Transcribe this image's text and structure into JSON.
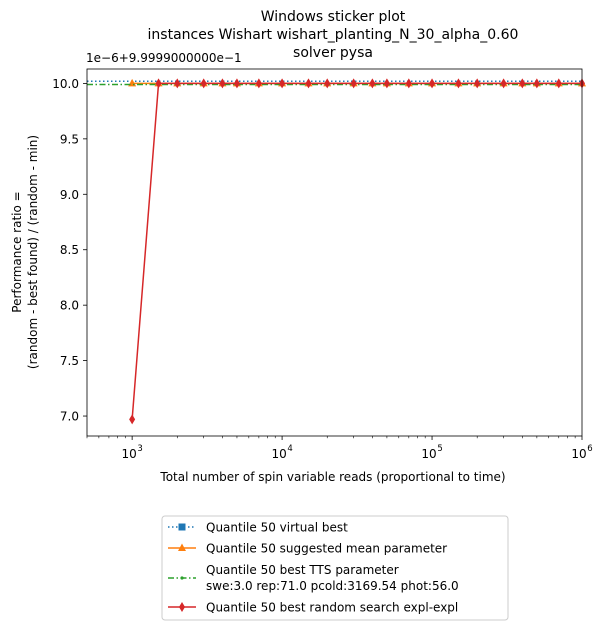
{
  "chart_data": {
    "type": "line",
    "title_lines": [
      "Windows sticker plot",
      "instances Wishart wishart_planting_N_30_alpha_0.60",
      "solver pysa"
    ],
    "xlabel": "Total number of spin variable reads (proportional to time)",
    "ylabel_lines": [
      "Performance ratio =",
      "(random - best found) / (random - min)"
    ],
    "y_offset_label": "1e−6+9.9999000000e−1",
    "x_scale": "log",
    "xlim": [
      500,
      1000000
    ],
    "x_ticks": [
      {
        "value": 1000,
        "base": "10",
        "exp": "3"
      },
      {
        "value": 10000,
        "base": "10",
        "exp": "4"
      },
      {
        "value": 100000,
        "base": "10",
        "exp": "5"
      },
      {
        "value": 1000000,
        "base": "10",
        "exp": "6"
      }
    ],
    "ylim": [
      6.82,
      10.13
    ],
    "y_ticks": [
      {
        "value": 7.0,
        "label": "7.0"
      },
      {
        "value": 7.5,
        "label": "7.5"
      },
      {
        "value": 8.0,
        "label": "8.0"
      },
      {
        "value": 8.5,
        "label": "8.5"
      },
      {
        "value": 9.0,
        "label": "9.0"
      },
      {
        "value": 9.5,
        "label": "9.5"
      },
      {
        "value": 10.0,
        "label": "10.0"
      }
    ],
    "grid": false,
    "legend_placement": "below the plot",
    "series": [
      {
        "name": "Quantile 50 virtual best",
        "color": "#1f77b4",
        "marker": "square",
        "line_style": "dotted",
        "x": [
          500,
          1000000
        ],
        "y": [
          10.02,
          10.02
        ]
      },
      {
        "name": "Quantile 50 suggested mean parameter",
        "color": "#ff7f0e",
        "marker": "triangle",
        "line_style": "solid",
        "x": [
          1000,
          1500,
          2000,
          3000,
          4000,
          5000,
          7000,
          10000,
          15000,
          20000,
          30000,
          40000,
          50000,
          70000,
          100000,
          150000,
          200000,
          300000,
          400000,
          500000,
          700000,
          1000000
        ],
        "y": [
          10.0,
          10.0,
          10.0,
          10.0,
          10.0,
          10.0,
          10.0,
          10.0,
          10.0,
          10.0,
          10.0,
          10.0,
          10.0,
          10.0,
          10.0,
          10.0,
          10.0,
          10.0,
          10.0,
          10.0,
          10.0,
          10.0
        ]
      },
      {
        "name_lines": [
          "Quantile 50 best TTS parameter",
          "swe:3.0 rep:71.0 pcold:3169.54 phot:56.0"
        ],
        "color": "#2ca02c",
        "marker": "point",
        "line_style": "dashdot",
        "x": [
          500,
          1000000
        ],
        "y": [
          9.99,
          9.99
        ]
      },
      {
        "name": "Quantile 50  best random search expl-expl",
        "color": "#d62728",
        "marker": "diamond",
        "line_style": "solid",
        "x": [
          1000,
          1500,
          2000,
          3000,
          4000,
          5000,
          7000,
          10000,
          15000,
          20000,
          30000,
          40000,
          50000,
          70000,
          100000,
          150000,
          200000,
          300000,
          400000,
          500000,
          700000,
          1000000
        ],
        "y": [
          6.97,
          10.0,
          10.0,
          10.0,
          10.0,
          10.0,
          10.0,
          10.0,
          10.0,
          10.0,
          10.0,
          10.0,
          10.0,
          10.0,
          10.0,
          10.0,
          10.0,
          10.0,
          10.0,
          10.0,
          10.0,
          10.0
        ]
      }
    ]
  }
}
